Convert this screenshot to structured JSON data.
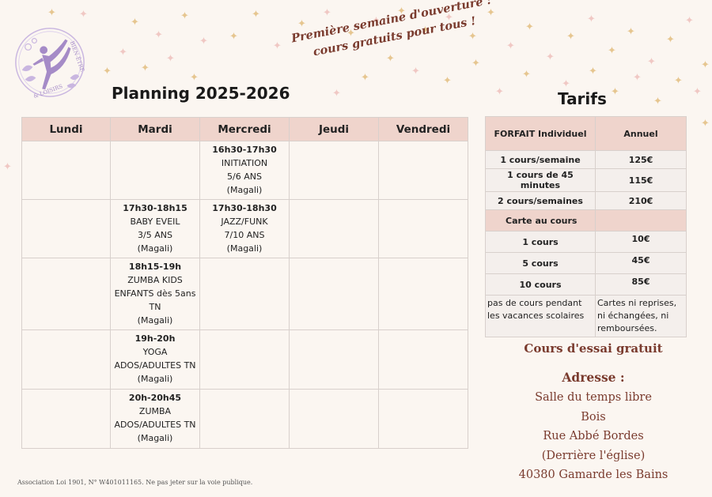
{
  "promo": {
    "line1": "Première semaine d'ouverture :",
    "line2": "cours gratuits pour tous !"
  },
  "logo": {
    "text_top": "BIEN-ÊTRE",
    "text_bottom": "& LOISIRS",
    "colors": {
      "purple": "#a58bc7",
      "light_purple": "#c9b6e0"
    }
  },
  "planning": {
    "title": "Planning 2025-2026",
    "days": [
      "Lundi",
      "Mardi",
      "Mercredi",
      "Jeudi",
      "Vendredi"
    ],
    "rows": [
      {
        "cells": [
          null,
          null,
          {
            "time": "16h30-17h30",
            "lines": [
              "INITIATION",
              "5/6 ANS",
              "(Magali)"
            ]
          },
          null,
          null
        ]
      },
      {
        "cells": [
          null,
          {
            "time": "17h30-18h15",
            "lines": [
              "BABY EVEIL",
              "3/5 ANS",
              "(Magali)"
            ]
          },
          {
            "time": "17h30-18h30",
            "lines": [
              "JAZZ/FUNK",
              "7/10 ANS",
              "(Magali)"
            ]
          },
          null,
          null
        ]
      },
      {
        "cells": [
          null,
          {
            "time": "18h15-19h",
            "lines": [
              "ZUMBA KIDS",
              "ENFANTS dès 5ans",
              "TN",
              "(Magali)"
            ]
          },
          null,
          null,
          null
        ]
      },
      {
        "cells": [
          null,
          {
            "time": "19h-20h",
            "lines": [
              "YOGA",
              "ADOS/ADULTES TN",
              "(Magali)"
            ]
          },
          null,
          null,
          null
        ]
      },
      {
        "cells": [
          null,
          {
            "time": "20h-20h45",
            "lines": [
              "ZUMBA",
              "ADOS/ADULTES TN",
              "(Magali)"
            ]
          },
          null,
          null,
          null
        ]
      }
    ]
  },
  "tarifs": {
    "title": "Tarifs",
    "header": {
      "col1": "FORFAIT Individuel",
      "col2": "Annuel"
    },
    "forfaits": [
      {
        "label": "1 cours/semaine",
        "price": "125€"
      },
      {
        "label": "1 cours de 45 minutes",
        "price": "115€"
      },
      {
        "label": "2 cours/semaines",
        "price": "210€"
      }
    ],
    "carte_label": "Carte au cours",
    "cartes": [
      {
        "label": "1 cours",
        "price": "10€"
      },
      {
        "label": "5 cours",
        "price": "45€"
      },
      {
        "label": "10 cours",
        "price": "85€"
      }
    ],
    "note_left": "pas de cours pendant les vacances scolaires",
    "note_right": "Cartes ni reprises, ni échangées, ni remboursées."
  },
  "essai": "Cours d'essai gratuit",
  "adresse": {
    "label": "Adresse :",
    "lines": [
      "Salle du temps libre",
      "Bois",
      "Rue Abbé Bordes",
      "(Derrière l'église)",
      "40380 Gamarde les Bains"
    ]
  },
  "footer": "Association Loi 1901, N° W401011165. Ne pas jeter sur la voie publique.",
  "colors": {
    "background": "#fbf6f1",
    "header_pink": "#efd4cc",
    "brown": "#7a3b2e",
    "sparkle_gold": "#e6c690",
    "sparkle_pink": "#f0c8c4"
  }
}
